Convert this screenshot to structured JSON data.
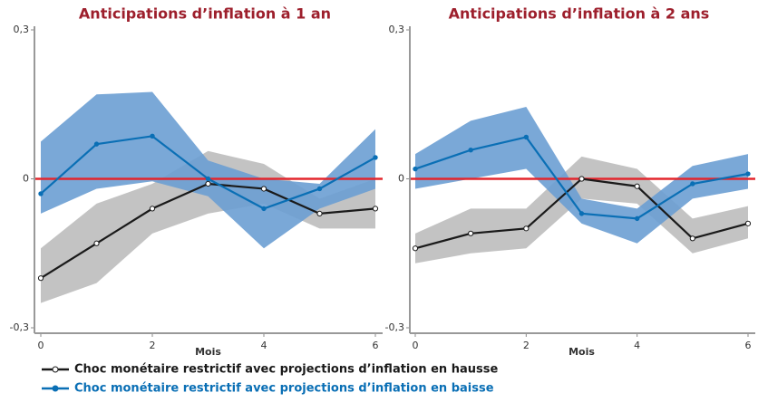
{
  "chart_data": [
    {
      "type": "line",
      "title": "Anticipations d’inflation à 1 an",
      "xlabel": "Mois",
      "x": [
        0,
        1,
        2,
        3,
        4,
        5,
        6
      ],
      "xlim": [
        0,
        6
      ],
      "xticks": [
        0,
        2,
        4,
        6
      ],
      "ylim": [
        -0.3,
        0.3
      ],
      "yticks": [
        {
          "value": 0.3,
          "label": "0,3"
        },
        0,
        {
          "value": -0.3,
          "label": "-0,3"
        }
      ],
      "hline": {
        "value": 0,
        "color": "#e3262d"
      },
      "series": [
        {
          "name": "Choc monétaire restrictif avec projections d’inflation en hausse",
          "color": "#1a1a1a",
          "band_color": "#bdbdbd",
          "marker": "open",
          "values": [
            -0.2,
            -0.13,
            -0.06,
            -0.01,
            -0.02,
            -0.07,
            -0.06
          ],
          "lower": [
            -0.25,
            -0.21,
            -0.11,
            -0.07,
            -0.05,
            -0.1,
            -0.1
          ],
          "upper": [
            -0.14,
            -0.05,
            -0.01,
            0.056,
            0.03,
            -0.04,
            0.0
          ]
        },
        {
          "name": "Choc monétaire restrictif avec projections d’inflation en baisse",
          "color": "#0a6fb5",
          "band_color": "#6c9fd3",
          "marker": "filled",
          "values": [
            -0.03,
            0.07,
            0.086,
            0.0,
            -0.06,
            -0.02,
            0.043
          ],
          "lower": [
            -0.07,
            -0.02,
            -0.005,
            -0.035,
            -0.14,
            -0.06,
            -0.02
          ],
          "upper": [
            0.075,
            0.17,
            0.175,
            0.037,
            0.0,
            -0.01,
            0.1
          ]
        }
      ]
    },
    {
      "type": "line",
      "title": "Anticipations d’inflation à 2 ans",
      "xlabel": "Mois",
      "x": [
        0,
        1,
        2,
        3,
        4,
        5,
        6
      ],
      "xlim": [
        0,
        6
      ],
      "xticks": [
        0,
        2,
        4,
        6
      ],
      "ylim": [
        -0.3,
        0.3
      ],
      "yticks": [
        {
          "value": 0.3,
          "label": "0,3"
        },
        0,
        {
          "value": -0.3,
          "label": "-0,3"
        }
      ],
      "hline": {
        "value": 0,
        "color": "#e3262d"
      },
      "series": [
        {
          "color": "#1a1a1a",
          "band_color": "#bdbdbd",
          "marker": "open",
          "values": [
            -0.14,
            -0.11,
            -0.1,
            0.0,
            -0.015,
            -0.12,
            -0.09
          ],
          "lower": [
            -0.17,
            -0.15,
            -0.14,
            -0.04,
            -0.05,
            -0.15,
            -0.12
          ],
          "upper": [
            -0.11,
            -0.06,
            -0.06,
            0.045,
            0.02,
            -0.08,
            -0.055
          ]
        },
        {
          "color": "#0a6fb5",
          "band_color": "#6c9fd3",
          "marker": "filled",
          "values": [
            0.02,
            0.058,
            0.084,
            -0.07,
            -0.08,
            -0.01,
            0.01
          ],
          "lower": [
            -0.02,
            0.0,
            0.02,
            -0.09,
            -0.13,
            -0.04,
            -0.02
          ],
          "upper": [
            0.05,
            0.117,
            0.145,
            -0.04,
            -0.06,
            0.026,
            0.05
          ]
        }
      ]
    }
  ]
}
